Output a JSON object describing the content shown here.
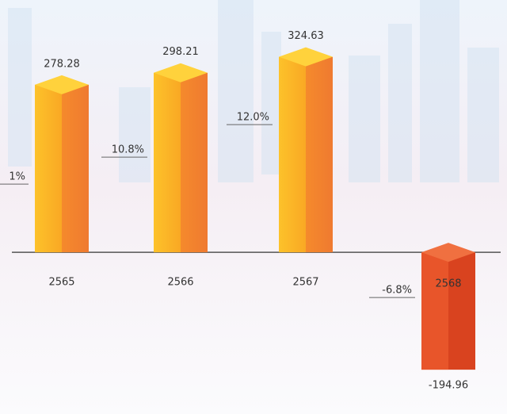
{
  "chart_data": {
    "type": "bar3d",
    "categories": [
      "2565",
      "2566",
      "2567",
      "2568"
    ],
    "values": [
      278.28,
      298.21,
      324.63,
      -194.96
    ],
    "growth_labels": [
      "1%",
      "10.8%",
      "12.0%",
      "-6.8%"
    ],
    "colors": {
      "positive": "#f7a021",
      "negative": "#e8552a"
    },
    "ylim": [
      -200,
      340
    ]
  }
}
